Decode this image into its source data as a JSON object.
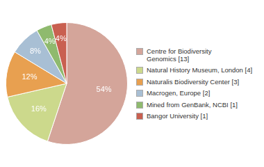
{
  "chart_data": {
    "type": "pie",
    "categories": [
      "Centre for Biodiversity\nGenomics [13]",
      "Natural History Museum, London [4]",
      "Naturalis Biodiversity Center [3]",
      "Macrogen, Europe [2]",
      "Mined from GenBank, NCBI [1]",
      "Bangor University [1]"
    ],
    "values": [
      54,
      16,
      12,
      8,
      4,
      4
    ],
    "value_labels": [
      "54%",
      "16%",
      "12%",
      "8%",
      "4%",
      "4%"
    ],
    "colors": [
      "#d4a59a",
      "#ccd98c",
      "#e8a050",
      "#a8bfd4",
      "#8fba6e",
      "#c96050"
    ],
    "data_labels": true,
    "legend": "right"
  }
}
